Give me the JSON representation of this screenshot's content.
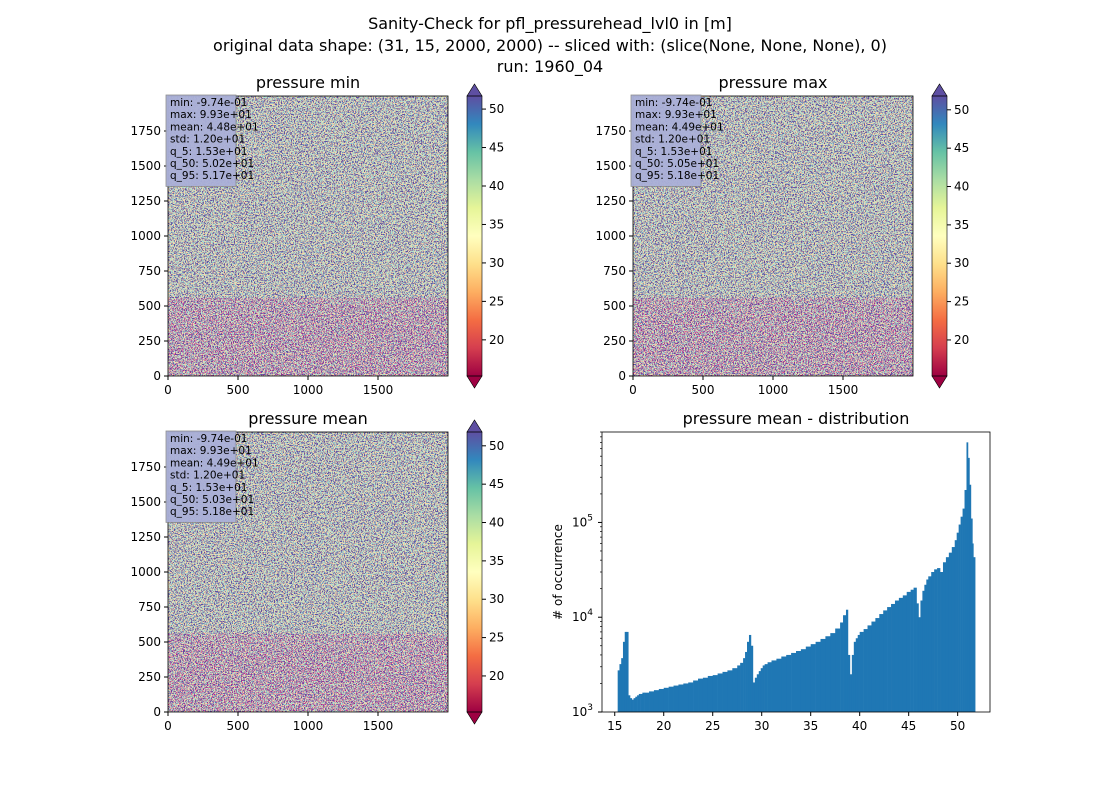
{
  "figure": {
    "title_lines": [
      "Sanity-Check for pfl_pressurehead_lvl0 in [m]",
      "original data shape: (31, 15, 2000, 2000) -- sliced with: (slice(None, None, None), 0)",
      "run: 1960_04"
    ]
  },
  "colors": {
    "map_background": "#5e4fa2",
    "histogram_bar": "#1f77b4",
    "stats_box": "#aab0d8",
    "colormap": [
      "#9e0142",
      "#d53e4f",
      "#f46d43",
      "#fdae61",
      "#fee08b",
      "#ffffbf",
      "#e6f598",
      "#abdda4",
      "#66c2a5",
      "#3288bd",
      "#5e4fa2"
    ]
  },
  "chart_data": [
    {
      "type": "heatmap",
      "title": "pressure min",
      "xlim": [
        0,
        2000
      ],
      "ylim": [
        0,
        2000
      ],
      "xticks": [
        "0",
        "500",
        "1000",
        "1500"
      ],
      "yticks": [
        "0",
        "250",
        "500",
        "750",
        "1000",
        "1250",
        "1500",
        "1750"
      ],
      "colorbar": {
        "min": 15.3,
        "max": 51.7,
        "ticks": [
          "20",
          "25",
          "30",
          "35",
          "40",
          "45",
          "50"
        ],
        "extend": "both"
      },
      "stats": [
        "min: -9.74e-01",
        "max: 9.93e+01",
        "mean: 4.48e+01",
        "std: 1.20e+01",
        "q_5: 1.53e+01",
        "q_50: 5.02e+01",
        "q_95: 5.17e+01"
      ]
    },
    {
      "type": "heatmap",
      "title": "pressure max",
      "xlim": [
        0,
        2000
      ],
      "ylim": [
        0,
        2000
      ],
      "xticks": [
        "0",
        "500",
        "1000",
        "1500"
      ],
      "yticks": [
        "0",
        "250",
        "500",
        "750",
        "1000",
        "1250",
        "1500",
        "1750"
      ],
      "colorbar": {
        "min": 15.3,
        "max": 51.8,
        "ticks": [
          "20",
          "25",
          "30",
          "35",
          "40",
          "45",
          "50"
        ],
        "extend": "both"
      },
      "stats": [
        "min: -9.74e-01",
        "max: 9.93e+01",
        "mean: 4.49e+01",
        "std: 1.20e+01",
        "q_5: 1.53e+01",
        "q_50: 5.05e+01",
        "q_95: 5.18e+01"
      ]
    },
    {
      "type": "heatmap",
      "title": "pressure mean",
      "xlim": [
        0,
        2000
      ],
      "ylim": [
        0,
        2000
      ],
      "xticks": [
        "0",
        "500",
        "1000",
        "1500"
      ],
      "yticks": [
        "0",
        "250",
        "500",
        "750",
        "1000",
        "1250",
        "1500",
        "1750"
      ],
      "colorbar": {
        "min": 15.3,
        "max": 51.8,
        "ticks": [
          "20",
          "25",
          "30",
          "35",
          "40",
          "45",
          "50"
        ],
        "extend": "both"
      },
      "stats": [
        "min: -9.74e-01",
        "max: 9.93e+01",
        "mean: 4.49e+01",
        "std: 1.20e+01",
        "q_5: 1.53e+01",
        "q_50: 5.03e+01",
        "q_95: 5.18e+01"
      ]
    },
    {
      "type": "bar",
      "title": "pressure mean - distribution",
      "xlabel": "",
      "ylabel": "# of occurrence",
      "yscale": "log",
      "xlim": [
        13.7,
        53.3
      ],
      "ylim": [
        1000,
        900000
      ],
      "xticks": [
        "15",
        "20",
        "25",
        "30",
        "35",
        "40",
        "45",
        "50"
      ],
      "yticks": [
        "10^3",
        "10^4",
        "10^5"
      ],
      "bin_width": 0.182,
      "bins": [
        [
          15.3,
          2750
        ],
        [
          15.48,
          3200
        ],
        [
          15.66,
          3700
        ],
        [
          15.84,
          5500
        ],
        [
          16.02,
          7000
        ],
        [
          16.2,
          7000
        ],
        [
          16.38,
          1500
        ],
        [
          16.56,
          1400
        ],
        [
          16.74,
          1350
        ],
        [
          16.92,
          1400
        ],
        [
          17.1,
          1450
        ],
        [
          17.28,
          1500
        ],
        [
          17.46,
          1550
        ],
        [
          17.64,
          1550
        ],
        [
          17.82,
          1600
        ],
        [
          18.0,
          1600
        ],
        [
          18.5,
          1650
        ],
        [
          19.0,
          1700
        ],
        [
          19.5,
          1750
        ],
        [
          20.0,
          1800
        ],
        [
          20.5,
          1850
        ],
        [
          21.0,
          1900
        ],
        [
          21.5,
          1950
        ],
        [
          22.0,
          2000
        ],
        [
          22.5,
          2050
        ],
        [
          23.0,
          2150
        ],
        [
          23.5,
          2250
        ],
        [
          24.0,
          2300
        ],
        [
          24.5,
          2400
        ],
        [
          25.0,
          2450
        ],
        [
          25.5,
          2550
        ],
        [
          26.0,
          2650
        ],
        [
          26.5,
          2750
        ],
        [
          27.0,
          2900
        ],
        [
          27.5,
          3100
        ],
        [
          27.8,
          3300
        ],
        [
          28.1,
          3700
        ],
        [
          28.3,
          4300
        ],
        [
          28.5,
          5500
        ],
        [
          28.7,
          6500
        ],
        [
          28.9,
          5000
        ],
        [
          29.1,
          2050
        ],
        [
          29.3,
          2300
        ],
        [
          29.5,
          2500
        ],
        [
          29.7,
          2700
        ],
        [
          29.9,
          2900
        ],
        [
          30.1,
          3100
        ],
        [
          30.3,
          3200
        ],
        [
          30.6,
          3350
        ],
        [
          31.0,
          3500
        ],
        [
          31.5,
          3650
        ],
        [
          32.0,
          3850
        ],
        [
          32.5,
          4000
        ],
        [
          33.0,
          4200
        ],
        [
          33.5,
          4400
        ],
        [
          34.0,
          4600
        ],
        [
          34.5,
          4900
        ],
        [
          35.0,
          5200
        ],
        [
          35.5,
          5500
        ],
        [
          36.0,
          5900
        ],
        [
          36.5,
          6300
        ],
        [
          37.0,
          6800
        ],
        [
          37.5,
          7600
        ],
        [
          38.0,
          8800
        ],
        [
          38.3,
          10500
        ],
        [
          38.6,
          12000
        ],
        [
          38.8,
          4000
        ],
        [
          39.0,
          2500
        ],
        [
          39.2,
          4000
        ],
        [
          39.4,
          5500
        ],
        [
          39.6,
          6000
        ],
        [
          39.8,
          6500
        ],
        [
          40.0,
          7000
        ],
        [
          40.4,
          7500
        ],
        [
          40.8,
          8200
        ],
        [
          41.2,
          9000
        ],
        [
          41.6,
          9800
        ],
        [
          42.0,
          10800
        ],
        [
          42.4,
          11800
        ],
        [
          42.8,
          12800
        ],
        [
          43.2,
          13800
        ],
        [
          43.6,
          15000
        ],
        [
          44.0,
          16000
        ],
        [
          44.4,
          17000
        ],
        [
          44.8,
          18500
        ],
        [
          45.2,
          19500
        ],
        [
          45.5,
          20500
        ],
        [
          45.8,
          14000
        ],
        [
          46.0,
          10000
        ],
        [
          46.2,
          15000
        ],
        [
          46.4,
          19000
        ],
        [
          46.6,
          22000
        ],
        [
          46.8,
          25000
        ],
        [
          47.0,
          27000
        ],
        [
          47.3,
          30000
        ],
        [
          47.6,
          32000
        ],
        [
          47.9,
          33000
        ],
        [
          48.2,
          30000
        ],
        [
          48.5,
          38000
        ],
        [
          48.8,
          43000
        ],
        [
          49.1,
          48000
        ],
        [
          49.4,
          55000
        ],
        [
          49.7,
          65000
        ],
        [
          49.9,
          78000
        ],
        [
          50.1,
          95000
        ],
        [
          50.3,
          115000
        ],
        [
          50.5,
          140000
        ],
        [
          50.7,
          220000
        ],
        [
          50.9,
          700000
        ],
        [
          51.05,
          480000
        ],
        [
          51.2,
          250000
        ],
        [
          51.35,
          110000
        ],
        [
          51.5,
          60000
        ],
        [
          51.6,
          43000
        ]
      ]
    }
  ]
}
